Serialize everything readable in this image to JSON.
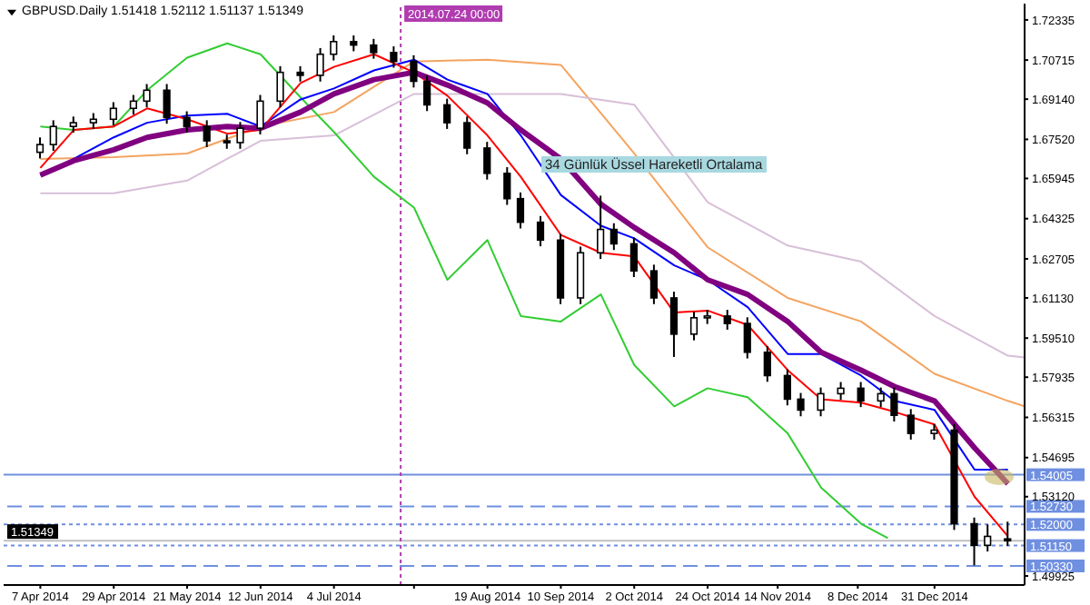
{
  "chart_data": {
    "type": "candlestick",
    "title": "GBPUSD.Daily 1.51418 1.52112 1.51137 1.51349",
    "color": "#000000",
    "x": [
      "2014-04-07",
      "2014-04-11",
      "2014-04-17",
      "2014-04-23",
      "2014-04-29",
      "2014-05-05",
      "2014-05-09",
      "2014-05-15",
      "2014-05-21",
      "2014-05-27",
      "2014-06-02",
      "2014-06-06",
      "2014-06-12",
      "2014-06-18",
      "2014-06-24",
      "2014-06-30",
      "2014-07-04",
      "2014-07-10",
      "2014-07-16",
      "2014-07-22",
      "2014-07-28",
      "2014-08-01",
      "2014-08-07",
      "2014-08-13",
      "2014-08-19",
      "2014-08-25",
      "2014-08-29",
      "2014-09-04",
      "2014-09-10",
      "2014-09-16",
      "2014-09-22",
      "2014-09-26",
      "2014-10-02",
      "2014-10-08",
      "2014-10-14",
      "2014-10-20",
      "2014-10-24",
      "2014-10-30",
      "2014-11-05",
      "2014-11-11",
      "2014-11-17",
      "2014-11-21",
      "2014-11-27",
      "2014-12-03",
      "2014-12-09",
      "2014-12-15",
      "2014-12-19",
      "2014-12-24",
      "2014-12-31",
      "2015-01-06",
      "2015-01-12",
      "2015-01-16",
      "2015-01-22"
    ],
    "ohlc": [
      [
        1.67,
        1.676,
        1.6675,
        1.6731
      ],
      [
        1.6731,
        1.6829,
        1.6706,
        1.6804
      ],
      [
        1.6804,
        1.6844,
        1.6779,
        1.6819
      ],
      [
        1.6819,
        1.6858,
        1.6794,
        1.6833
      ],
      [
        1.6833,
        1.6902,
        1.6808,
        1.6877
      ],
      [
        1.6877,
        1.6931,
        1.6852,
        1.6906
      ],
      [
        1.6906,
        1.6975,
        1.6881,
        1.695
      ],
      [
        1.695,
        1.6975,
        1.6815,
        1.684
      ],
      [
        1.684,
        1.6865,
        1.6779,
        1.6804
      ],
      [
        1.6804,
        1.6829,
        1.6721,
        1.6746
      ],
      [
        1.6746,
        1.6771,
        1.6714,
        1.6739
      ],
      [
        1.6739,
        1.6822,
        1.6714,
        1.6797
      ],
      [
        1.6797,
        1.6931,
        1.6772,
        1.6906
      ],
      [
        1.6906,
        1.7047,
        1.6881,
        1.7022
      ],
      [
        1.7022,
        1.7047,
        1.6985,
        1.701
      ],
      [
        1.701,
        1.712,
        1.6985,
        1.7095
      ],
      [
        1.7095,
        1.7171,
        1.707,
        1.7146
      ],
      [
        1.7146,
        1.7171,
        1.7107,
        1.7132
      ],
      [
        1.7132,
        1.7157,
        1.7077,
        1.7102
      ],
      [
        1.7102,
        1.7127,
        1.7041,
        1.7066
      ],
      [
        1.7066,
        1.7091,
        1.6961,
        1.6986
      ],
      [
        1.6986,
        1.7011,
        1.6866,
        1.6891
      ],
      [
        1.6891,
        1.6916,
        1.6794,
        1.6819
      ],
      [
        1.6819,
        1.6844,
        1.6692,
        1.6717
      ],
      [
        1.6717,
        1.6742,
        1.659,
        1.6615
      ],
      [
        1.6615,
        1.664,
        1.6488,
        1.6513
      ],
      [
        1.6513,
        1.6538,
        1.6393,
        1.6418
      ],
      [
        1.6418,
        1.6443,
        1.6321,
        1.6346
      ],
      [
        1.6346,
        1.6371,
        1.6088,
        1.6113
      ],
      [
        1.6113,
        1.632,
        1.6088,
        1.6295
      ],
      [
        1.6295,
        1.6525,
        1.627,
        1.6389
      ],
      [
        1.6389,
        1.6414,
        1.6306,
        1.6331
      ],
      [
        1.6331,
        1.6356,
        1.6197,
        1.6222
      ],
      [
        1.6222,
        1.6247,
        1.6088,
        1.6113
      ],
      [
        1.6113,
        1.6138,
        1.5875,
        1.5967
      ],
      [
        1.5967,
        1.6058,
        1.5942,
        1.6033
      ],
      [
        1.6033,
        1.6065,
        1.6008,
        1.604
      ],
      [
        1.604,
        1.6065,
        1.5985,
        1.601
      ],
      [
        1.601,
        1.6035,
        1.5869,
        1.5894
      ],
      [
        1.5894,
        1.5919,
        1.5775,
        1.58
      ],
      [
        1.58,
        1.5825,
        1.568,
        1.5705
      ],
      [
        1.5705,
        1.573,
        1.5636,
        1.5661
      ],
      [
        1.5661,
        1.5752,
        1.5636,
        1.5727
      ],
      [
        1.5727,
        1.5774,
        1.5702,
        1.5749
      ],
      [
        1.5749,
        1.5774,
        1.5673,
        1.5698
      ],
      [
        1.5698,
        1.5752,
        1.5673,
        1.5727
      ],
      [
        1.5727,
        1.5752,
        1.5615,
        1.564
      ],
      [
        1.564,
        1.5665,
        1.5542,
        1.5567
      ],
      [
        1.5567,
        1.5605,
        1.5542,
        1.558
      ],
      [
        1.558,
        1.5605,
        1.5178,
        1.5203
      ],
      [
        1.5203,
        1.5228,
        1.5035,
        1.5116
      ],
      [
        1.5116,
        1.52,
        1.5091,
        1.5152
      ],
      [
        1.51418,
        1.52112,
        1.51137,
        1.51349
      ]
    ],
    "series": [
      {
        "type": "line",
        "color": "#f4a460",
        "x": [
          "2014-04-07",
          "2014-04-29",
          "2014-05-21",
          "2014-06-12",
          "2014-07-04",
          "2014-07-28",
          "2014-08-19",
          "2014-09-10",
          "2014-10-02",
          "2014-10-24",
          "2014-11-17",
          "2014-12-09",
          "2014-12-31",
          "2015-01-22",
          "2015-01-27"
        ],
        "values": [
          1.6673,
          1.668,
          1.6695,
          1.6804,
          1.6862,
          1.7066,
          1.7073,
          1.7052,
          1.6695,
          1.6317,
          1.6113,
          1.6018,
          1.5807,
          1.5698,
          1.5676
        ]
      },
      {
        "type": "line",
        "color": "#d8bfd8",
        "x": [
          "2014-04-07",
          "2014-04-29",
          "2014-05-21",
          "2014-06-12",
          "2014-07-04",
          "2014-07-28",
          "2014-08-19",
          "2014-09-10",
          "2014-10-02",
          "2014-10-24",
          "2014-11-17",
          "2014-12-09",
          "2014-12-31",
          "2015-01-22",
          "2015-01-27"
        ],
        "values": [
          1.6535,
          1.6535,
          1.6586,
          1.6746,
          1.6768,
          1.6935,
          1.6935,
          1.6935,
          1.6892,
          1.6499,
          1.6324,
          1.6259,
          1.604,
          1.588,
          1.5873
        ]
      },
      {
        "type": "line",
        "color": "#32cd32",
        "x": [
          "2014-04-07",
          "2014-04-17",
          "2014-04-29",
          "2014-05-09",
          "2014-05-21",
          "2014-06-02",
          "2014-06-12",
          "2014-06-24",
          "2014-07-04",
          "2014-07-16",
          "2014-07-28",
          "2014-08-07",
          "2014-08-19",
          "2014-08-29",
          "2014-09-10",
          "2014-09-22",
          "2014-10-02",
          "2014-10-14",
          "2014-10-24",
          "2014-11-05",
          "2014-11-17",
          "2014-11-27",
          "2014-12-09",
          "2014-12-17"
        ],
        "values": [
          1.6804,
          1.679,
          1.6804,
          1.695,
          1.7081,
          1.7139,
          1.7095,
          1.6921,
          1.6782,
          1.6601,
          1.6477,
          1.6186,
          1.6346,
          1.604,
          1.6018,
          1.6127,
          1.5843,
          1.5676,
          1.5749,
          1.5713,
          1.5567,
          1.5349,
          1.5203,
          1.5145
        ]
      },
      {
        "type": "line",
        "color": "#0000ff",
        "x": [
          "2014-04-07",
          "2014-04-17",
          "2014-04-29",
          "2014-05-09",
          "2014-05-21",
          "2014-06-02",
          "2014-06-12",
          "2014-06-24",
          "2014-07-04",
          "2014-07-16",
          "2014-07-28",
          "2014-08-07",
          "2014-08-19",
          "2014-08-29",
          "2014-09-10",
          "2014-09-22",
          "2014-10-02",
          "2014-10-14",
          "2014-10-24",
          "2014-11-05",
          "2014-11-17",
          "2014-11-27",
          "2014-12-09",
          "2014-12-19",
          "2014-12-31",
          "2015-01-12",
          "2015-01-22"
        ],
        "values": [
          1.6608,
          1.6673,
          1.676,
          1.6819,
          1.6848,
          1.6855,
          1.6804,
          1.6913,
          1.6957,
          1.703,
          1.7073,
          1.6993,
          1.6935,
          1.6768,
          1.6528,
          1.6404,
          1.6353,
          1.6244,
          1.6186,
          1.6076,
          1.5887,
          1.5887,
          1.58,
          1.5698,
          1.5662,
          1.5421,
          1.5421
        ]
      },
      {
        "type": "line",
        "color": "#ff0000",
        "x": [
          "2014-04-07",
          "2014-04-17",
          "2014-04-29",
          "2014-05-09",
          "2014-05-21",
          "2014-06-02",
          "2014-06-12",
          "2014-06-24",
          "2014-07-04",
          "2014-07-16",
          "2014-07-28",
          "2014-08-07",
          "2014-08-19",
          "2014-08-29",
          "2014-09-10",
          "2014-09-22",
          "2014-10-02",
          "2014-10-14",
          "2014-10-24",
          "2014-11-05",
          "2014-11-17",
          "2014-11-27",
          "2014-12-09",
          "2014-12-19",
          "2014-12-31",
          "2015-01-12",
          "2015-01-22"
        ],
        "values": [
          1.6637,
          1.679,
          1.6804,
          1.6877,
          1.6833,
          1.6775,
          1.679,
          1.6979,
          1.7044,
          1.7095,
          1.7022,
          1.6928,
          1.6768,
          1.6601,
          1.6367,
          1.6295,
          1.628,
          1.6054,
          1.6062,
          1.6004,
          1.5822,
          1.5705,
          1.5691,
          1.5654,
          1.5603,
          1.5312,
          1.5152
        ]
      },
      {
        "type": "line",
        "name": "34 Günlük Üssel Hareketli Ortalama",
        "color": "#800080",
        "x": [
          "2014-04-07",
          "2014-04-17",
          "2014-04-29",
          "2014-05-09",
          "2014-05-21",
          "2014-06-02",
          "2014-06-12",
          "2014-06-24",
          "2014-07-04",
          "2014-07-16",
          "2014-07-28",
          "2014-08-07",
          "2014-08-19",
          "2014-08-29",
          "2014-09-10",
          "2014-09-22",
          "2014-10-02",
          "2014-10-14",
          "2014-10-24",
          "2014-11-05",
          "2014-11-17",
          "2014-11-27",
          "2014-12-09",
          "2014-12-19",
          "2014-12-31",
          "2015-01-12",
          "2015-01-22"
        ],
        "values": [
          1.6608,
          1.6666,
          1.671,
          1.676,
          1.679,
          1.6804,
          1.6797,
          1.6862,
          1.6935,
          1.6993,
          1.7022,
          1.6971,
          1.6899,
          1.679,
          1.6673,
          1.6491,
          1.6397,
          1.6295,
          1.6186,
          1.6127,
          1.6018,
          1.5894,
          1.5822,
          1.5756,
          1.5698,
          1.5509,
          1.5364
        ]
      }
    ],
    "xlim": [
      "2014-03-27",
      "2015-01-27"
    ],
    "xticks": [
      {
        "value": "2014-04-07",
        "label": "7 Apr 2014"
      },
      {
        "value": "2014-04-29",
        "label": "29 Apr 2014"
      },
      {
        "value": "2014-05-21",
        "label": "21 May 2014"
      },
      {
        "value": "2014-06-12",
        "label": "12 Jun 2014"
      },
      {
        "value": "2014-07-04",
        "label": "4 Jul 2014"
      },
      {
        "value": "2014-07-28",
        "label": null
      },
      {
        "value": "2014-08-19",
        "label": "19 Aug 2014"
      },
      {
        "value": "2014-09-10",
        "label": "10 Sep 2014"
      },
      {
        "value": "2014-10-02",
        "label": "2 Oct 2014"
      },
      {
        "value": "2014-10-24",
        "label": "24 Oct 2014"
      },
      {
        "value": "2014-11-14",
        "label": "14 Nov 2014"
      },
      {
        "value": "2014-12-08",
        "label": "8 Dec 2014"
      },
      {
        "value": "2014-12-31",
        "label": "31 Dec 2014"
      }
    ],
    "ylim": [
      1.4956,
      1.7299
    ],
    "yticks": [
      {
        "value": 1.49925,
        "label": "1.49925"
      },
      {
        "value": 1.5312,
        "label": "1.53120"
      },
      {
        "value": 1.54695,
        "label": "1.54695"
      },
      {
        "value": 1.56315,
        "label": "1.56315"
      },
      {
        "value": 1.57935,
        "label": "1.57935"
      },
      {
        "value": 1.5951,
        "label": "1.59510"
      },
      {
        "value": 1.6113,
        "label": "1.61130"
      },
      {
        "value": 1.62705,
        "label": "1.62705"
      },
      {
        "value": 1.64325,
        "label": "1.64325"
      },
      {
        "value": 1.65945,
        "label": "1.65945"
      },
      {
        "value": 1.6752,
        "label": "1.67520"
      },
      {
        "value": 1.6914,
        "label": "1.69140"
      },
      {
        "value": 1.70715,
        "label": "1.70715"
      },
      {
        "value": 1.72335,
        "label": "1.72335"
      }
    ],
    "ref_lines": [
      {
        "axis": "y",
        "value": 1.54005,
        "label": "1.54005",
        "color": "#6f8fe0",
        "line_style": "solid"
      },
      {
        "axis": "y",
        "value": 1.5273,
        "label": "1.52730",
        "color": "#6f8fe0",
        "line_style": "dashed"
      },
      {
        "axis": "y",
        "value": 1.52,
        "label": "1.52000",
        "color": "#6f8fe0",
        "line_style": "dotted"
      },
      {
        "axis": "y",
        "value": 1.51349,
        "label": "1.51349",
        "color": "#c0c0c0",
        "line_style": "solid"
      },
      {
        "axis": "y",
        "value": 1.5115,
        "label": "1.51150",
        "color": "#6f8fe0",
        "line_style": "dotted"
      },
      {
        "axis": "y",
        "value": 1.5033,
        "label": "1.50330",
        "color": "#6f8fe0",
        "line_style": "dashed"
      },
      {
        "axis": "x",
        "value": "2014-07-24",
        "label": "2014.07.24 00:00",
        "color": "#b03cb0",
        "line_style": "dotted"
      }
    ],
    "marker": "none"
  }
}
